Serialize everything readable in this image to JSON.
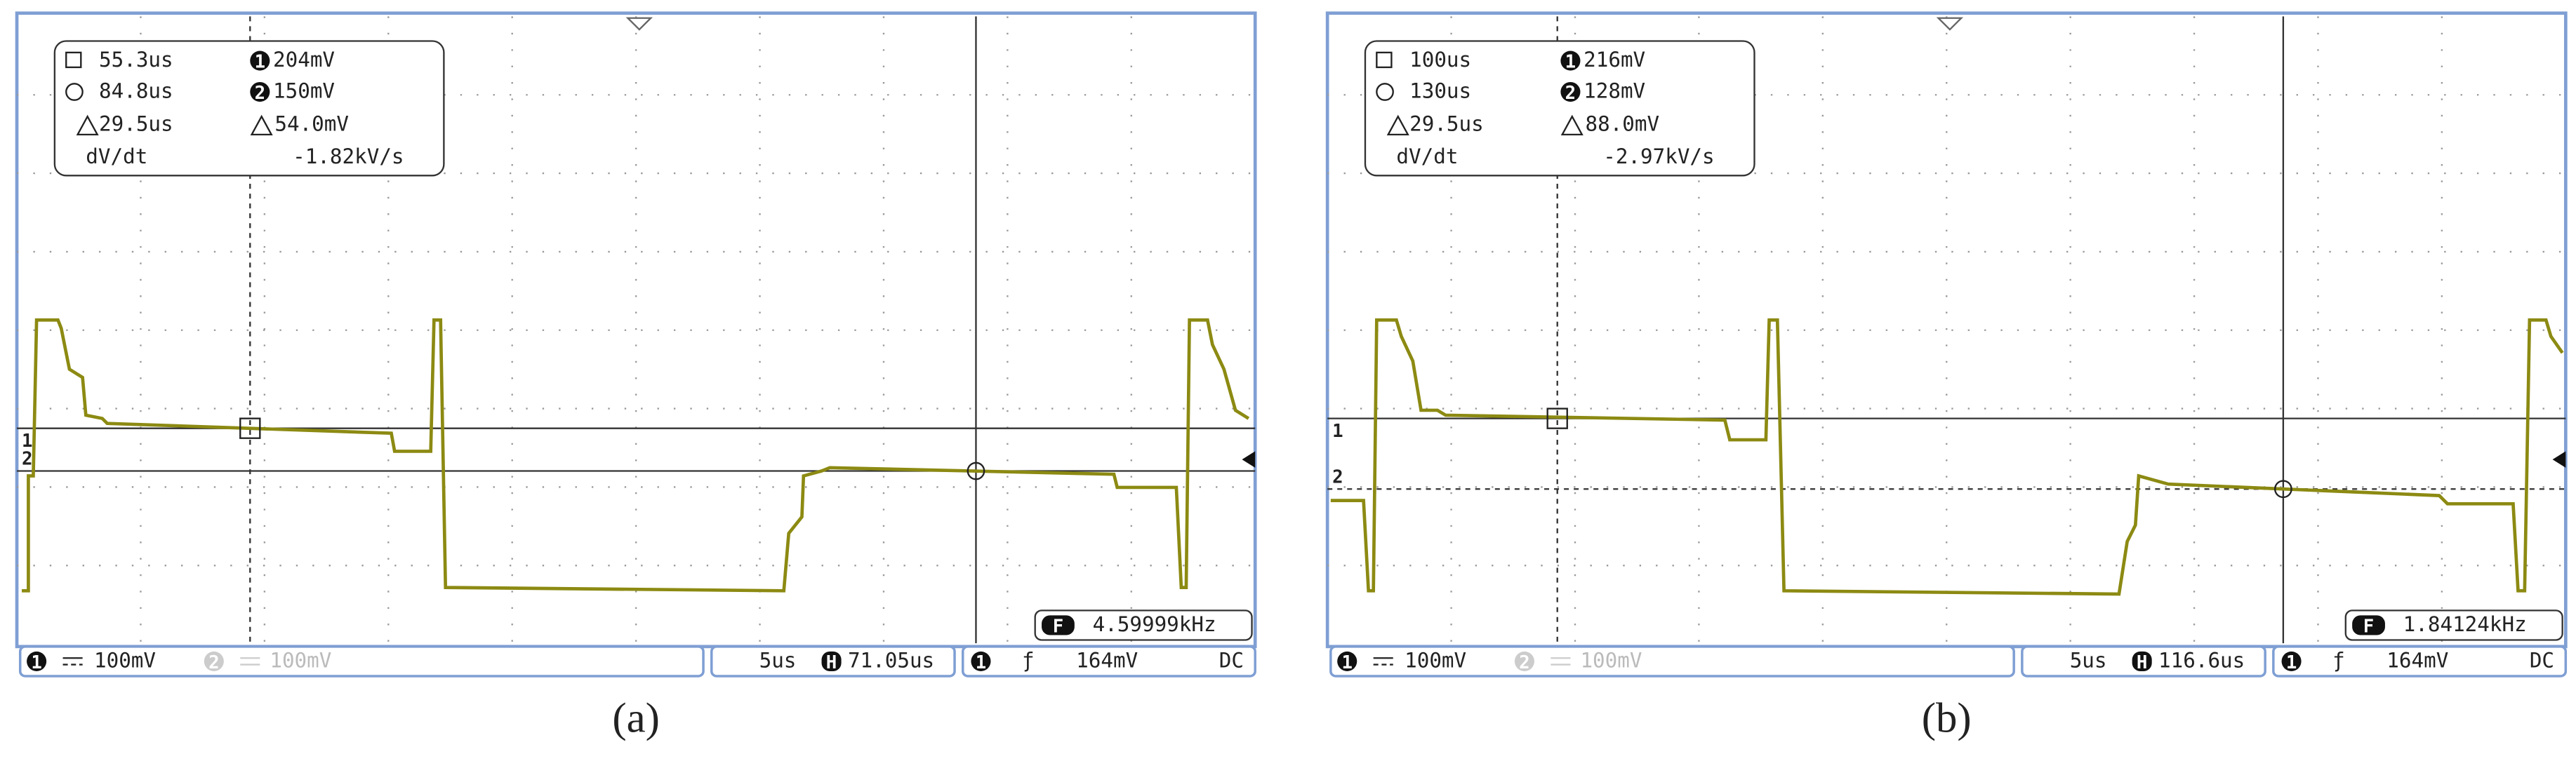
{
  "panels": [
    {
      "caption": "(a)",
      "cursors": {
        "t1": "55.3us",
        "v1": "204mV",
        "t2": "84.8us",
        "v2": "150mV",
        "dt": "29.5us",
        "dv": "54.0mV",
        "slope_label": "dV/dt",
        "slope": "-1.82kV/s"
      },
      "frequency_icon": "F",
      "frequency": "4.59999kHz",
      "channel_markers": [
        "1",
        "2"
      ],
      "status": {
        "ch1_scale": "100mV",
        "ch2_scale": "100mV",
        "timebase": "5us",
        "delay_icon": "H",
        "delay": "71.05us",
        "trigger_slope": "ƒ",
        "trigger_level": "164mV",
        "coupling": "DC"
      }
    },
    {
      "caption": "(b)",
      "cursors": {
        "t1": "100us",
        "v1": "216mV",
        "t2": "130us",
        "v2": "128mV",
        "dt": "29.5us",
        "dv": "88.0mV",
        "slope_label": "dV/dt",
        "slope": "-2.97kV/s"
      },
      "frequency_icon": "F",
      "frequency": "1.84124kHz",
      "channel_markers": [
        "1",
        "2"
      ],
      "status": {
        "ch1_scale": "100mV",
        "ch2_scale": "100mV",
        "timebase": "5us",
        "delay_icon": "H",
        "delay": "116.6us",
        "trigger_slope": "ƒ",
        "trigger_level": "164mV",
        "coupling": "DC"
      }
    }
  ]
}
